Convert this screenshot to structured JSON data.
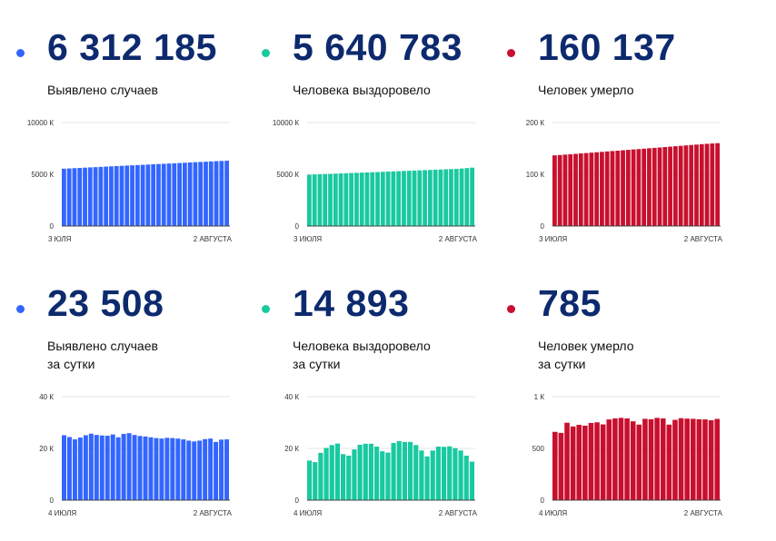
{
  "colors": {
    "blue": "#3366ff",
    "teal": "#19c9a0",
    "red": "#c8102e",
    "number": "#0d2a6e"
  },
  "cards": [
    {
      "number": "6 312 185",
      "label_line1": "Выявлено случаев",
      "label_line2": "",
      "color": "#3366ff",
      "chart_data": {
        "type": "bar",
        "y_ticks": [
          "10000 К",
          "5000 К",
          "0"
        ],
        "ylim": [
          0,
          10000
        ],
        "y_unit": "К",
        "x_ticks": [
          "3 ЮЛЯ",
          "2 АВГУСТА"
        ],
        "values": [
          5540,
          5565,
          5590,
          5615,
          5640,
          5665,
          5690,
          5715,
          5740,
          5765,
          5790,
          5815,
          5840,
          5865,
          5890,
          5915,
          5940,
          5965,
          5990,
          6015,
          6040,
          6065,
          6090,
          6115,
          6140,
          6165,
          6190,
          6215,
          6240,
          6265,
          6290,
          6312
        ]
      }
    },
    {
      "number": "5 640 783",
      "label_line1": "Человека выздоровело",
      "label_line2": "",
      "color": "#19c9a0",
      "chart_data": {
        "type": "bar",
        "y_ticks": [
          "10000 К",
          "5000 К",
          "0"
        ],
        "ylim": [
          0,
          10000
        ],
        "y_unit": "К",
        "x_ticks": [
          "3 ИЮЛЯ",
          "2 АВГУСТА"
        ],
        "values": [
          4960,
          4980,
          5000,
          5020,
          5040,
          5060,
          5080,
          5100,
          5120,
          5140,
          5160,
          5180,
          5200,
          5220,
          5240,
          5260,
          5280,
          5300,
          5320,
          5340,
          5360,
          5380,
          5400,
          5420,
          5440,
          5460,
          5480,
          5500,
          5520,
          5560,
          5600,
          5641
        ]
      }
    },
    {
      "number": "160 137",
      "label_line1": "Человек умерло",
      "label_line2": "",
      "color": "#c8102e",
      "chart_data": {
        "type": "bar",
        "y_ticks": [
          "200 К",
          "100 К",
          "0"
        ],
        "ylim": [
          0,
          200
        ],
        "y_unit": "К",
        "x_ticks": [
          "3 ИЮЛЯ",
          "2 АВГУСТА"
        ],
        "values": [
          136.5,
          137.2,
          138,
          138.7,
          139.5,
          140.3,
          141,
          141.8,
          142.6,
          143.3,
          144.1,
          144.9,
          145.6,
          146.4,
          147.2,
          148,
          148.7,
          149.5,
          150.3,
          151,
          151.8,
          152.6,
          153.4,
          154.2,
          155,
          155.8,
          156.6,
          157.4,
          158.2,
          158.9,
          159.5,
          160.1
        ]
      }
    },
    {
      "number": "23 508",
      "label_line1": "Выявлено случаев",
      "label_line2": "за сутки",
      "color": "#3366ff",
      "chart_data": {
        "type": "bar",
        "y_ticks": [
          "40 К",
          "20 К",
          "0"
        ],
        "ylim": [
          0,
          40
        ],
        "y_unit": "К",
        "x_ticks": [
          "4 ИЮЛЯ",
          "2 АВГУСТА"
        ],
        "values": [
          25.1,
          24.4,
          23.5,
          24.2,
          25.1,
          25.7,
          25.2,
          25.0,
          24.9,
          25.4,
          24.3,
          25.6,
          25.9,
          25.2,
          24.8,
          24.6,
          24.3,
          24.0,
          23.8,
          24.1,
          24.0,
          23.8,
          23.5,
          23.0,
          22.7,
          23.0,
          23.6,
          23.8,
          22.5,
          23.4,
          23.5
        ]
      }
    },
    {
      "number": "14 893",
      "label_line1": "Человека выздоровело",
      "label_line2": "за сутки",
      "color": "#19c9a0",
      "chart_data": {
        "type": "bar",
        "y_ticks": [
          "40 К",
          "20 К",
          "0"
        ],
        "ylim": [
          0,
          40
        ],
        "y_unit": "К",
        "x_ticks": [
          "4 ИЮЛЯ",
          "2 АВГУСТА"
        ],
        "values": [
          15.3,
          14.7,
          18.3,
          20.2,
          21.3,
          21.9,
          17.8,
          17.2,
          19.6,
          21.4,
          21.8,
          21.8,
          20.7,
          18.9,
          18.4,
          22.1,
          22.8,
          22.5,
          22.5,
          21.3,
          19.2,
          16.9,
          19.2,
          20.7,
          20.6,
          20.8,
          20.1,
          19.2,
          17.2,
          14.9
        ]
      }
    },
    {
      "number": "785",
      "label_line1": "Человек умерло",
      "label_line2": "за сутки",
      "color": "#c8102e",
      "chart_data": {
        "type": "bar",
        "y_ticks": [
          "1 К",
          "500",
          "0"
        ],
        "ylim": [
          0,
          1000
        ],
        "y_unit": "",
        "x_ticks": [
          "4 ИЮЛЯ",
          "2 АВГУСТА"
        ],
        "values": [
          660,
          650,
          748,
          712,
          728,
          720,
          746,
          752,
          732,
          780,
          790,
          795,
          790,
          762,
          730,
          786,
          782,
          795,
          790,
          730,
          776,
          792,
          788,
          786,
          782,
          780,
          772,
          785
        ]
      }
    }
  ]
}
